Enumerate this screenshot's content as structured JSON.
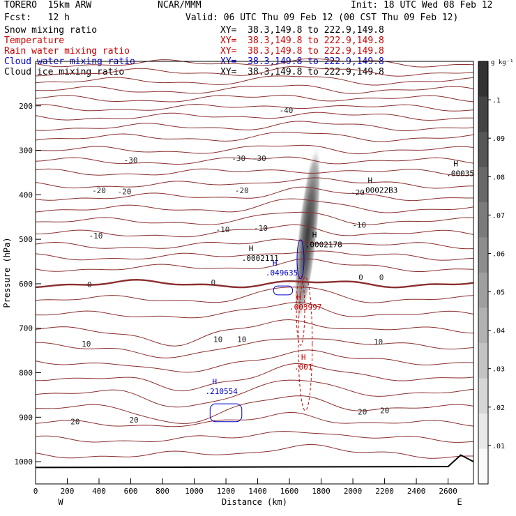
{
  "header": {
    "model": "TORERO  15km ARW",
    "org": "NCAR/MMM",
    "init": "Init: 18 UTC Wed 08 Feb 12",
    "fcst": "Fcst:   12 h",
    "valid": "Valid: 06 UTC Thu 09 Feb 12 (00 CST Thu 09 Feb 12)",
    "fields": [
      {
        "name": "Snow mixing ratio",
        "xy": "XY=  38.3,149.8 to 222.9,149.8",
        "color": "#000000"
      },
      {
        "name": "Temperature",
        "xy": "XY=  38.3,149.8 to 222.9,149.8",
        "color": "#cc0000"
      },
      {
        "name": "Rain water mixing ratio",
        "xy": "XY=  38.3,149.8 to 222.9,149.8",
        "color": "#cc0000"
      },
      {
        "name": "Cloud water mixing ratio",
        "xy": "XY=  38.3,149.8 to 222.9,149.8",
        "color": "#0000cc"
      },
      {
        "name": "Cloud ice mixing ratio",
        "xy": "XY=  38.3,149.8 to 222.9,149.8",
        "color": "#000000"
      }
    ]
  },
  "chart_data": {
    "type": "contour",
    "xlabel": "Distance (km)",
    "ylabel": "Pressure (hPa)",
    "xlim": [
      0,
      2760
    ],
    "ylim": [
      1050,
      100
    ],
    "x_ticks": [
      0,
      200,
      400,
      600,
      800,
      1000,
      1200,
      1400,
      1600,
      1800,
      2000,
      2200,
      2400,
      2600
    ],
    "y_ticks": [
      200,
      300,
      400,
      500,
      600,
      700,
      800,
      900,
      1000
    ],
    "x_end_labels": {
      "left": "W",
      "right": "E"
    },
    "colorbar": {
      "units": "g kg⁻¹",
      "ticks": [
        0.01,
        0.02,
        0.03,
        0.04,
        0.05,
        0.06,
        0.07,
        0.08,
        0.09,
        0.1
      ],
      "tick_labels": [
        ".01",
        ".02",
        ".03",
        ".04",
        ".05",
        ".06",
        ".07",
        ".08",
        ".09",
        ".1"
      ]
    },
    "temperature_labels": [
      {
        "value": "-40",
        "x": 1580,
        "p": 210
      },
      {
        "value": "-30",
        "x": 600,
        "p": 322
      },
      {
        "value": "-30",
        "x": 1280,
        "p": 318
      },
      {
        "value": "-30",
        "x": 1410,
        "p": 318
      },
      {
        "value": "-20",
        "x": 400,
        "p": 390
      },
      {
        "value": "-20",
        "x": 560,
        "p": 392
      },
      {
        "value": "-20",
        "x": 1300,
        "p": 390
      },
      {
        "value": "-20",
        "x": 2030,
        "p": 395
      },
      {
        "value": "-10",
        "x": 380,
        "p": 492
      },
      {
        "value": "-10",
        "x": 1180,
        "p": 478
      },
      {
        "value": "-10",
        "x": 1420,
        "p": 475
      },
      {
        "value": "-10",
        "x": 2040,
        "p": 468
      },
      {
        "value": "0",
        "x": 340,
        "p": 602
      },
      {
        "value": "0",
        "x": 1120,
        "p": 597
      },
      {
        "value": "0",
        "x": 2050,
        "p": 585
      },
      {
        "value": "0",
        "x": 2180,
        "p": 585
      },
      {
        "value": "10",
        "x": 320,
        "p": 735
      },
      {
        "value": "10",
        "x": 1150,
        "p": 725
      },
      {
        "value": "10",
        "x": 1300,
        "p": 725
      },
      {
        "value": "10",
        "x": 2160,
        "p": 730
      },
      {
        "value": "20",
        "x": 250,
        "p": 910
      },
      {
        "value": "20",
        "x": 620,
        "p": 906
      },
      {
        "value": "20",
        "x": 2060,
        "p": 888
      },
      {
        "value": "20",
        "x": 2200,
        "p": 885
      }
    ],
    "maxima": [
      {
        "label": ".0002111",
        "x": 1300,
        "p": 545,
        "color": "#000000"
      },
      {
        "label": ".0002178",
        "x": 1700,
        "p": 515,
        "color": "#000000"
      },
      {
        "label": ".00022B3",
        "x": 2050,
        "p": 392,
        "color": "#000000"
      },
      {
        "label": ".00035",
        "x": 2590,
        "p": 355,
        "color": "#000000"
      },
      {
        "label": ".049635",
        "x": 1450,
        "p": 578,
        "color": "#0000cc"
      },
      {
        "label": ".003997",
        "x": 1600,
        "p": 655,
        "color": "#cc0000"
      },
      {
        "label": ".210554",
        "x": 1070,
        "p": 845,
        "color": "#0000cc"
      },
      {
        "label": ".001",
        "x": 1630,
        "p": 790,
        "color": "#cc0000"
      }
    ],
    "max_marker": "H"
  }
}
